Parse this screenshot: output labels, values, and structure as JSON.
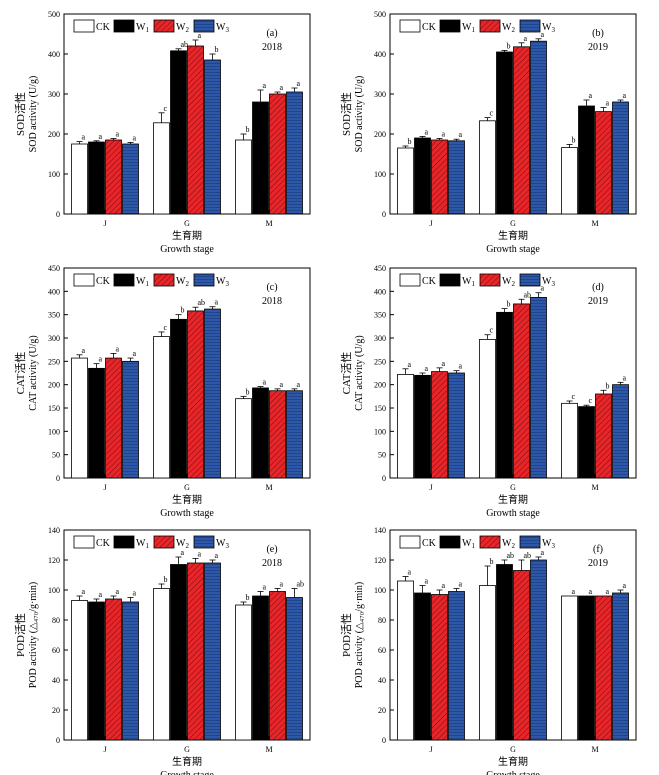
{
  "legend": {
    "labels": [
      "CK",
      "W",
      "W",
      "W"
    ],
    "subscripts": [
      "",
      "1",
      "2",
      "3"
    ],
    "colors": [
      "#ffffff",
      "#000000",
      "#e8262a",
      "#2d57a8"
    ],
    "patterns": [
      "none",
      "solid",
      "hatch",
      "hatch"
    ]
  },
  "chart_data": [
    {
      "type": "bar",
      "panel": "(a)",
      "year": "2018",
      "ylabel_cn": "SOD活性",
      "ylabel_en": "SOD activity (U/g)",
      "xlabel_cn": "生育期",
      "xlabel_en": "Growth stage",
      "categories": [
        "J",
        "G",
        "M"
      ],
      "ylim": [
        0,
        500
      ],
      "yticks": [
        0,
        100,
        200,
        300,
        400,
        500
      ],
      "series": [
        {
          "name": "CK",
          "values": [
            175,
            228,
            185
          ],
          "errors": [
            6,
            25,
            15
          ],
          "letters": [
            "a",
            "c",
            "b"
          ]
        },
        {
          "name": "W1",
          "values": [
            180,
            408,
            280
          ],
          "errors": [
            3,
            5,
            30
          ],
          "letters": [
            "a",
            "ab",
            "a"
          ]
        },
        {
          "name": "W2",
          "values": [
            185,
            420,
            300
          ],
          "errors": [
            4,
            15,
            5
          ],
          "letters": [
            "a",
            "a",
            "a"
          ]
        },
        {
          "name": "W3",
          "values": [
            175,
            385,
            305
          ],
          "errors": [
            4,
            15,
            10
          ],
          "letters": [
            "a",
            "b",
            "a"
          ]
        }
      ]
    },
    {
      "type": "bar",
      "panel": "(b)",
      "year": "2019",
      "ylabel_cn": "SOD活性",
      "ylabel_en": "SOD activity (U/g)",
      "xlabel_cn": "生育期",
      "xlabel_en": "Growth stage",
      "categories": [
        "J",
        "G",
        "M"
      ],
      "ylim": [
        0,
        500
      ],
      "yticks": [
        0,
        100,
        200,
        300,
        400,
        500
      ],
      "series": [
        {
          "name": "CK",
          "values": [
            165,
            233,
            166
          ],
          "errors": [
            5,
            8,
            8
          ],
          "letters": [
            "b",
            "c",
            "b"
          ]
        },
        {
          "name": "W1",
          "values": [
            190,
            405,
            270
          ],
          "errors": [
            4,
            4,
            15
          ],
          "letters": [
            "a",
            "b",
            "a"
          ]
        },
        {
          "name": "W2",
          "values": [
            185,
            418,
            256
          ],
          "errors": [
            4,
            10,
            10
          ],
          "letters": [
            "a",
            "a",
            "a"
          ]
        },
        {
          "name": "W3",
          "values": [
            183,
            432,
            280
          ],
          "errors": [
            4,
            6,
            5
          ],
          "letters": [
            "a",
            "a",
            "a"
          ]
        }
      ]
    },
    {
      "type": "bar",
      "panel": "(c)",
      "year": "2018",
      "ylabel_cn": "CAT活性",
      "ylabel_en": "CAT activity (U/g)",
      "xlabel_cn": "生育期",
      "xlabel_en": "Growth stage",
      "categories": [
        "J",
        "G",
        "M"
      ],
      "ylim": [
        0,
        450
      ],
      "yticks": [
        0,
        50,
        100,
        150,
        200,
        250,
        300,
        350,
        400,
        450
      ],
      "series": [
        {
          "name": "CK",
          "values": [
            257,
            303,
            170
          ],
          "errors": [
            7,
            10,
            5
          ],
          "letters": [
            "a",
            "c",
            "b"
          ]
        },
        {
          "name": "W1",
          "values": [
            235,
            340,
            193
          ],
          "errors": [
            10,
            10,
            3
          ],
          "letters": [
            "a",
            "b",
            "a"
          ]
        },
        {
          "name": "W2",
          "values": [
            257,
            358,
            187
          ],
          "errors": [
            10,
            8,
            4
          ],
          "letters": [
            "a",
            "ab",
            "a"
          ]
        },
        {
          "name": "W3",
          "values": [
            250,
            362,
            187
          ],
          "errors": [
            7,
            5,
            4
          ],
          "letters": [
            "a",
            "a",
            "a"
          ]
        }
      ]
    },
    {
      "type": "bar",
      "panel": "(d)",
      "year": "2019",
      "ylabel_cn": "CAT活性",
      "ylabel_en": "CAT activity (U/g)",
      "xlabel_cn": "生育期",
      "xlabel_en": "Growth stage",
      "categories": [
        "J",
        "G",
        "M"
      ],
      "ylim": [
        0,
        450
      ],
      "yticks": [
        0,
        50,
        100,
        150,
        200,
        250,
        300,
        350,
        400,
        450
      ],
      "series": [
        {
          "name": "CK",
          "values": [
            222,
            297,
            160
          ],
          "errors": [
            12,
            10,
            5
          ],
          "letters": [
            "a",
            "c",
            "c"
          ]
        },
        {
          "name": "W1",
          "values": [
            220,
            355,
            153
          ],
          "errors": [
            5,
            8,
            3
          ],
          "letters": [
            "a",
            "b",
            "c"
          ]
        },
        {
          "name": "W2",
          "values": [
            228,
            373,
            180
          ],
          "errors": [
            8,
            10,
            8
          ],
          "letters": [
            "a",
            "ab",
            "b"
          ]
        },
        {
          "name": "W3",
          "values": [
            225,
            387,
            200
          ],
          "errors": [
            5,
            10,
            5
          ],
          "letters": [
            "a",
            "a",
            "a"
          ]
        }
      ]
    },
    {
      "type": "bar",
      "panel": "(e)",
      "year": "2018",
      "ylabel_cn": "POD活性",
      "ylabel_en": "POD activity (△₄₇₀/g·min)",
      "xlabel_cn": "生育期",
      "xlabel_en": "Growth stage",
      "categories": [
        "J",
        "G",
        "M"
      ],
      "ylim": [
        0,
        140
      ],
      "yticks": [
        0,
        20,
        40,
        60,
        80,
        100,
        120,
        140
      ],
      "series": [
        {
          "name": "CK",
          "values": [
            93,
            101,
            90
          ],
          "errors": [
            3,
            3,
            2
          ],
          "letters": [
            "a",
            "b",
            "b"
          ]
        },
        {
          "name": "W1",
          "values": [
            92,
            117,
            96
          ],
          "errors": [
            2,
            5,
            3
          ],
          "letters": [
            "a",
            "a",
            "a"
          ]
        },
        {
          "name": "W2",
          "values": [
            94,
            118,
            99
          ],
          "errors": [
            2,
            3,
            2
          ],
          "letters": [
            "a",
            "a",
            "a"
          ]
        },
        {
          "name": "W3",
          "values": [
            92,
            118,
            95
          ],
          "errors": [
            3,
            2,
            6
          ],
          "letters": [
            "a",
            "a",
            "ab"
          ]
        }
      ]
    },
    {
      "type": "bar",
      "panel": "(f)",
      "year": "2019",
      "ylabel_cn": "POD活性",
      "ylabel_en": "POD activity (△₄₇₀/g·min)",
      "xlabel_cn": "生育期",
      "xlabel_en": "Growth stage",
      "categories": [
        "J",
        "G",
        "M"
      ],
      "ylim": [
        0,
        140
      ],
      "yticks": [
        0,
        20,
        40,
        60,
        80,
        100,
        120,
        140
      ],
      "series": [
        {
          "name": "CK",
          "values": [
            106,
            103,
            96
          ],
          "errors": [
            3,
            13,
            0
          ],
          "letters": [
            "a",
            "b",
            "a"
          ]
        },
        {
          "name": "W1",
          "values": [
            98,
            117,
            96
          ],
          "errors": [
            5,
            3,
            0
          ],
          "letters": [
            "a",
            "ab",
            "a"
          ]
        },
        {
          "name": "W2",
          "values": [
            97,
            113,
            96
          ],
          "errors": [
            3,
            7,
            0
          ],
          "letters": [
            "a",
            "ab",
            "a"
          ]
        },
        {
          "name": "W3",
          "values": [
            99,
            120,
            98
          ],
          "errors": [
            2,
            2,
            2
          ],
          "letters": [
            "a",
            "a",
            "a"
          ]
        }
      ]
    }
  ]
}
